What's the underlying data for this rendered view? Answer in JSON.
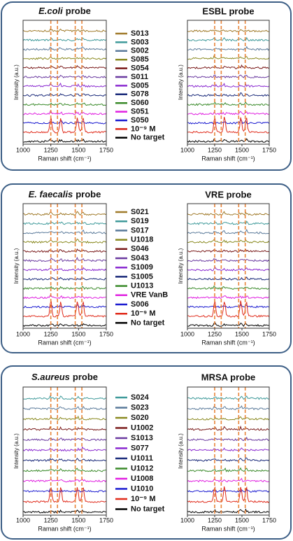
{
  "panels": [
    {
      "left": {
        "title": {
          "italic": "E.coli",
          "rest": "probe"
        }
      },
      "right": {
        "title": "ESBL probe"
      },
      "legend": [
        {
          "label": "S013",
          "color": "#a07a2a"
        },
        {
          "label": "S003",
          "color": "#3f9a9a"
        },
        {
          "label": "S002",
          "color": "#5a7a9a"
        },
        {
          "label": "S085",
          "color": "#8a8a20"
        },
        {
          "label": "S054",
          "color": "#7a1a1a"
        },
        {
          "label": "S011",
          "color": "#6a3aa0"
        },
        {
          "label": "S005",
          "color": "#8a2ad0"
        },
        {
          "label": "S078",
          "color": "#1a2a7a"
        },
        {
          "label": "S060",
          "color": "#3a8a2a"
        },
        {
          "label": "S051",
          "color": "#e020e0"
        },
        {
          "label": "S050",
          "color": "#1a1ad0"
        },
        {
          "label": "10⁻⁹ M",
          "color": "#e02a1a"
        },
        {
          "label": "No target",
          "color": "#000000"
        }
      ],
      "x_label": "Raman shift (cm⁻¹)",
      "y_label": "Intensity (a.u.)",
      "xlim": [
        1000,
        1750
      ],
      "xticks": [
        1000,
        1250,
        1500,
        1750
      ],
      "dashed_x": [
        1250,
        1310,
        1470,
        1530
      ]
    },
    {
      "left": {
        "title": {
          "italic": "E. faecalis",
          "rest": "probe"
        }
      },
      "right": {
        "title": "VRE probe"
      },
      "legend": [
        {
          "label": "S021",
          "color": "#a07a2a"
        },
        {
          "label": "S019",
          "color": "#3f9a9a"
        },
        {
          "label": "S017",
          "color": "#5a7a9a"
        },
        {
          "label": "U1018",
          "color": "#8a8a20"
        },
        {
          "label": "S046",
          "color": "#7a1a1a"
        },
        {
          "label": "S043",
          "color": "#6a3aa0"
        },
        {
          "label": "S1009",
          "color": "#8a2ad0"
        },
        {
          "label": "S1005",
          "color": "#1a2a7a"
        },
        {
          "label": "U1013",
          "color": "#3a8a2a"
        },
        {
          "label": "VRE VanB",
          "color": "#e020e0"
        },
        {
          "label": "S006",
          "color": "#1a1ad0"
        },
        {
          "label": "10⁻⁹ M",
          "color": "#e02a1a"
        },
        {
          "label": "No target",
          "color": "#000000"
        }
      ],
      "x_label": "Raman shift (cm⁻¹)",
      "y_label": "Intensity (a.u.)",
      "xlim": [
        1000,
        1750
      ],
      "xticks": [
        1000,
        1250,
        1500,
        1750
      ],
      "dashed_x": [
        1250,
        1310,
        1470,
        1530
      ]
    },
    {
      "left": {
        "title": {
          "italic": "S.aureus",
          "rest": "probe"
        }
      },
      "right": {
        "title": "MRSA probe"
      },
      "legend": [
        {
          "label": "S024",
          "color": "#3f9a9a"
        },
        {
          "label": "S023",
          "color": "#5a7a9a"
        },
        {
          "label": "S020",
          "color": "#8a8a20"
        },
        {
          "label": "U1002",
          "color": "#7a1a1a"
        },
        {
          "label": "S1013",
          "color": "#6a3aa0"
        },
        {
          "label": "S077",
          "color": "#8a2ad0"
        },
        {
          "label": "U1011",
          "color": "#1a2a7a"
        },
        {
          "label": "U1012",
          "color": "#3a8a2a"
        },
        {
          "label": "U1008",
          "color": "#e020e0"
        },
        {
          "label": "U1010",
          "color": "#1a1ad0"
        },
        {
          "label": "10⁻⁹ M",
          "color": "#e02a1a"
        },
        {
          "label": "No target",
          "color": "#000000"
        }
      ],
      "x_label": "Raman shift (cm⁻¹)",
      "y_label": "Intensity (a.u.)",
      "xlim": [
        1000,
        1750
      ],
      "xticks": [
        1000,
        1250,
        1500,
        1750
      ],
      "dashed_x": [
        1250,
        1310,
        1470,
        1530
      ]
    }
  ]
}
